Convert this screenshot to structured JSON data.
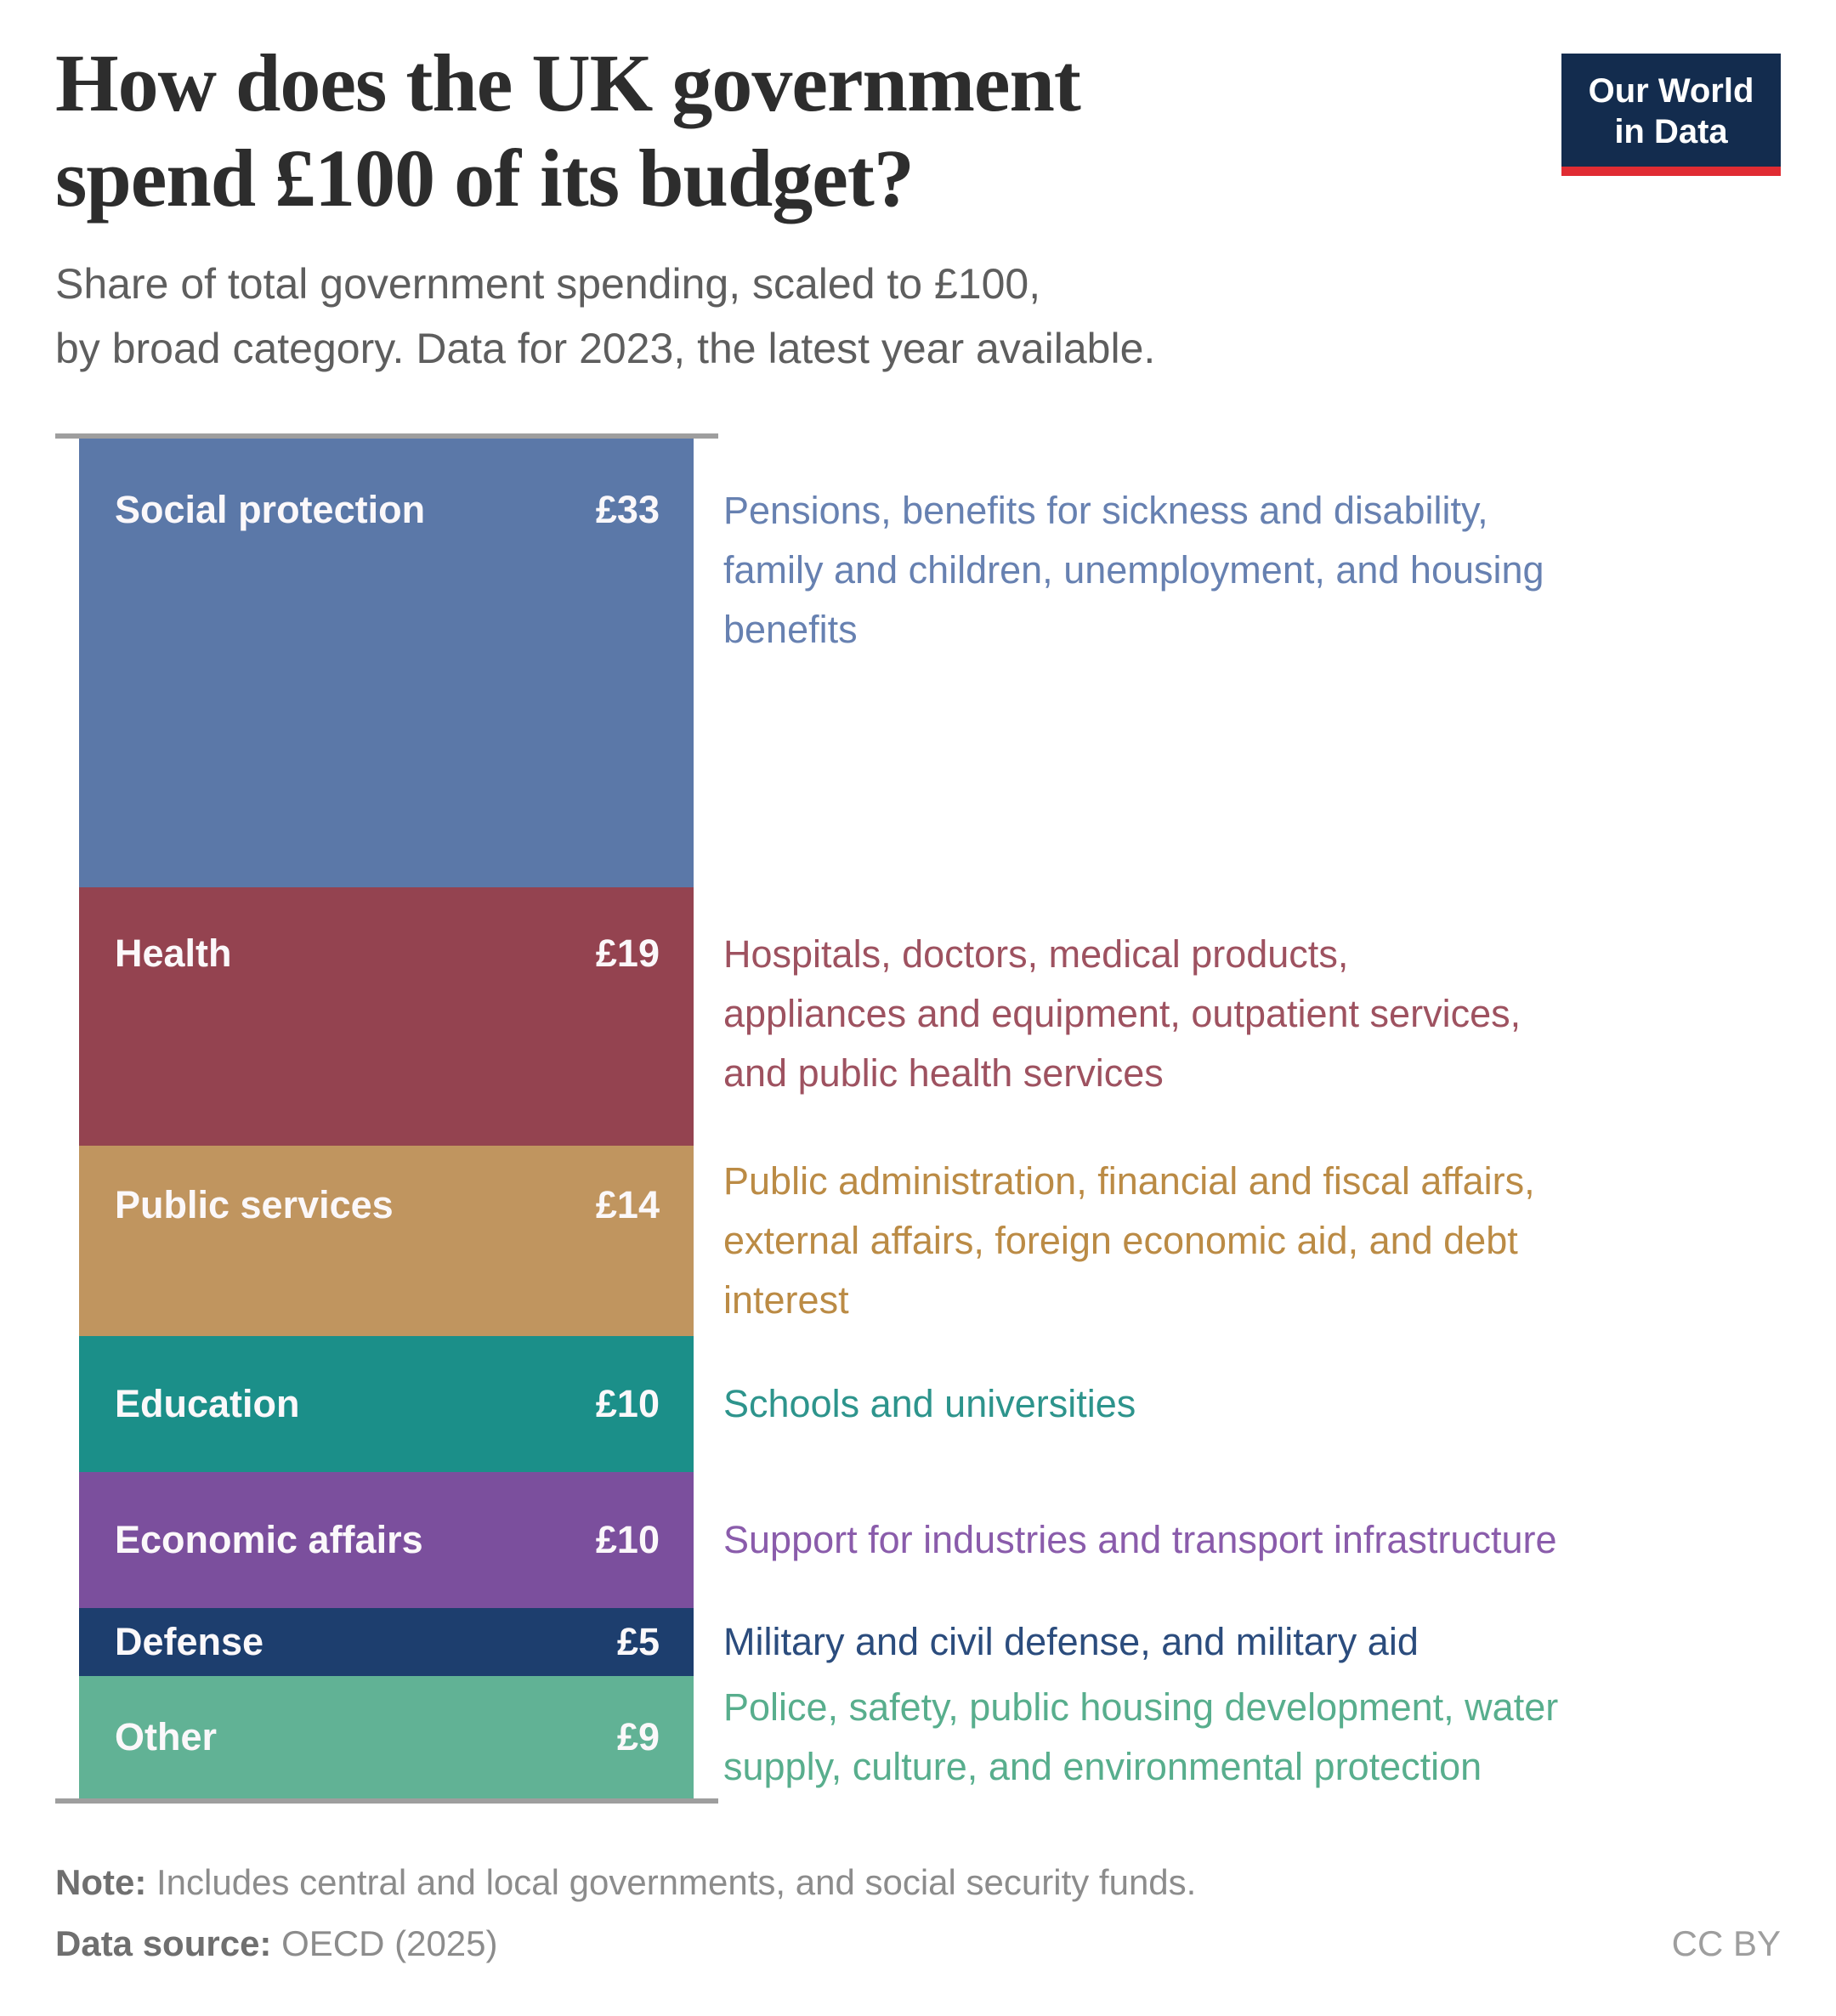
{
  "header": {
    "title_line1": "How does the UK government",
    "title_line2": "spend £100 of its budget?",
    "subtitle_line1": "Share of total government spending, scaled to £100,",
    "subtitle_line2": "by broad category. Data for 2023, the latest year available."
  },
  "logo": {
    "line1": "Our World",
    "line2": "in Data",
    "background_color": "#132c4e",
    "accent_color": "#e02c33"
  },
  "chart_data": {
    "type": "bar",
    "subtype": "single-column-stacked",
    "title": "How does the UK government spend £100 of its budget?",
    "unit": "£ out of £100",
    "total": 100,
    "year": "2023",
    "categories": [
      "Social protection",
      "Health",
      "Public services",
      "Education",
      "Economic affairs",
      "Defense",
      "Other"
    ],
    "values": [
      33,
      19,
      14,
      10,
      10,
      5,
      9
    ],
    "axis_line_color": "#9e9e9e",
    "segments": [
      {
        "label": "Social protection",
        "value": 33,
        "display_value": "£33",
        "description": "Pensions, benefits for sickness and disability,\nfamily and children, unemployment, and housing\nbenefits",
        "bar_color": "#5b78a8",
        "text_color": "#6781b1"
      },
      {
        "label": "Health",
        "value": 19,
        "display_value": "£19",
        "description": "Hospitals, doctors, medical products,\nappliances and equipment, outpatient services,\nand public health services",
        "bar_color": "#944350",
        "text_color": "#9e5260"
      },
      {
        "label": "Public services",
        "value": 14,
        "display_value": "£14",
        "description": "Public administration, financial and fiscal affairs,\nexternal affairs, foreign economic aid, and debt\ninterest",
        "bar_color": "#c0955f",
        "text_color": "#bb8b45"
      },
      {
        "label": "Education",
        "value": 10,
        "display_value": "£10",
        "description": "Schools and universities",
        "bar_color": "#1b8f89",
        "text_color": "#2d948c"
      },
      {
        "label": "Economic affairs",
        "value": 10,
        "display_value": "£10",
        "description": "Support for industries and transport infrastructure",
        "bar_color": "#7b4f9d",
        "text_color": "#8a5cab"
      },
      {
        "label": "Defense",
        "value": 5,
        "display_value": "£5",
        "description": "Military and civil defense, and military aid",
        "bar_color": "#1d3e6e",
        "text_color": "#2b4c7d"
      },
      {
        "label": "Other",
        "value": 9,
        "display_value": "£9",
        "description": "Police, safety, public housing development, water\nsupply, culture, and environmental protection",
        "bar_color": "#61b295",
        "text_color": "#58ae8d"
      }
    ]
  },
  "footer": {
    "note_label": "Note:",
    "note_text": " Includes central and local governments, and social security funds.",
    "source_label": "Data source:",
    "source_text": " OECD (2025)",
    "license": "CC BY"
  }
}
